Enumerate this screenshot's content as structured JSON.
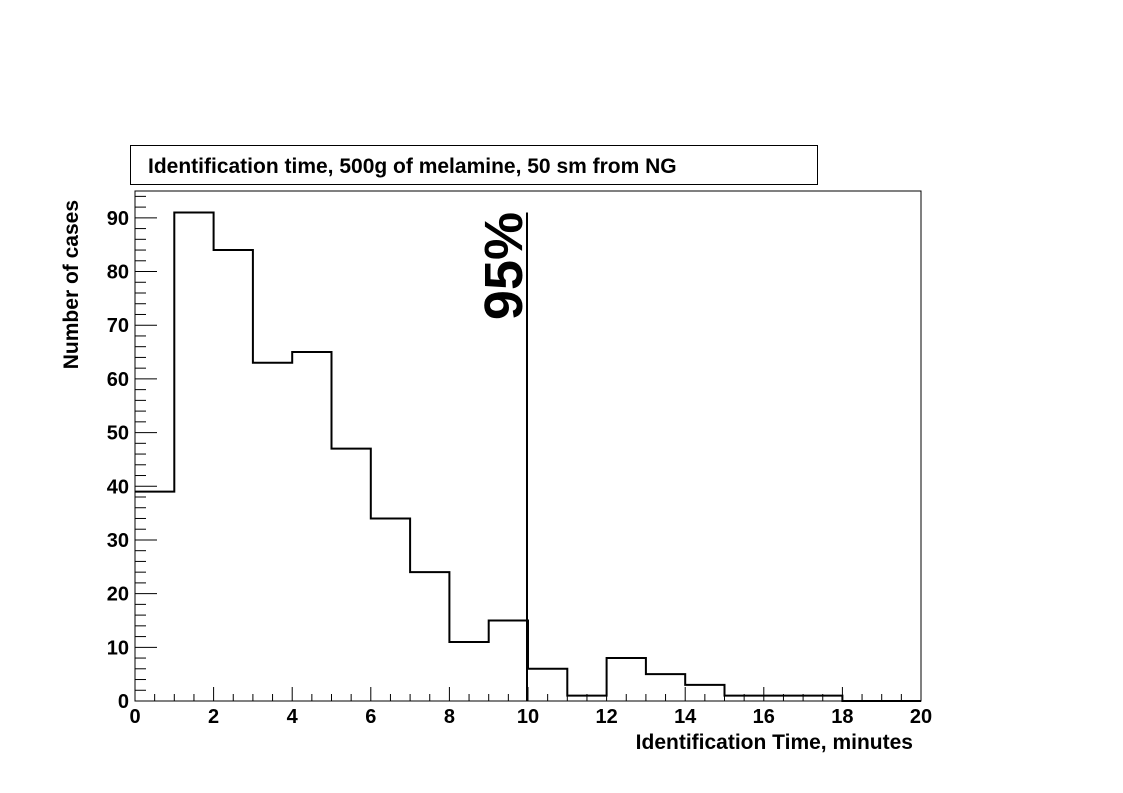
{
  "chart_data": {
    "type": "bar",
    "title": "Identification time, 500g of melamine, 50 sm from NG",
    "xlabel": "Identification Time, minutes",
    "ylabel": "Number of cases",
    "xlim": [
      0,
      20
    ],
    "ylim": [
      0,
      95
    ],
    "bin_width": 1,
    "bin_edges": [
      0,
      1,
      2,
      3,
      4,
      5,
      6,
      7,
      8,
      9,
      10,
      11,
      12,
      13,
      14,
      15,
      16,
      17,
      18,
      19,
      20
    ],
    "values": [
      39,
      91,
      84,
      63,
      65,
      47,
      34,
      24,
      11,
      15,
      6,
      1,
      8,
      5,
      3,
      1,
      1,
      1,
      0,
      0
    ],
    "x_ticks": [
      "0",
      "2",
      "4",
      "6",
      "8",
      "10",
      "12",
      "14",
      "16",
      "18",
      "20"
    ],
    "y_ticks": [
      "0",
      "10",
      "20",
      "30",
      "40",
      "50",
      "60",
      "70",
      "80",
      "90"
    ],
    "annotation": {
      "text": "95%",
      "x": 10
    },
    "grid": false,
    "style": "step histogram",
    "line_color": "#000000"
  }
}
